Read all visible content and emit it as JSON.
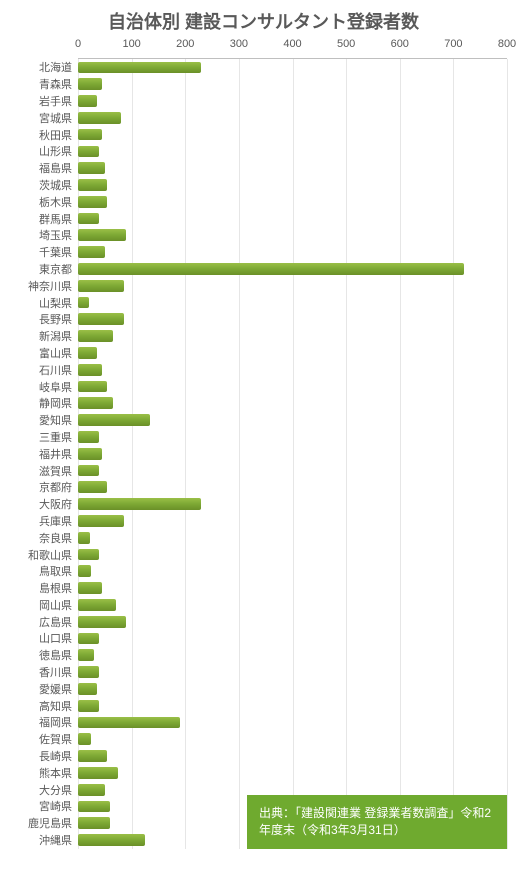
{
  "chart": {
    "type": "bar",
    "title": "自治体別  建設コンサルタント登録者数",
    "title_fontsize": 18,
    "title_color": "#595959",
    "x_axis": {
      "min": 0,
      "max": 800,
      "tick_step": 100,
      "ticks": [
        0,
        100,
        200,
        300,
        400,
        500,
        600,
        700,
        800
      ],
      "label_color": "#595959",
      "label_fontsize": 11
    },
    "grid_color": "#e6e6e6",
    "axis_line_color": "#bfbfbf",
    "bar_color": "#7da834",
    "bar_gradient_top": "#9abf47",
    "bar_gradient_bottom": "#6a9028",
    "background_color": "#ffffff",
    "categories": [
      "北海道",
      "青森県",
      "岩手県",
      "宮城県",
      "秋田県",
      "山形県",
      "福島県",
      "茨城県",
      "栃木県",
      "群馬県",
      "埼玉県",
      "千葉県",
      "東京都",
      "神奈川県",
      "山梨県",
      "長野県",
      "新潟県",
      "富山県",
      "石川県",
      "岐阜県",
      "静岡県",
      "愛知県",
      "三重県",
      "福井県",
      "滋賀県",
      "京都府",
      "大阪府",
      "兵庫県",
      "奈良県",
      "和歌山県",
      "鳥取県",
      "島根県",
      "岡山県",
      "広島県",
      "山口県",
      "徳島県",
      "香川県",
      "愛媛県",
      "高知県",
      "福岡県",
      "佐賀県",
      "長崎県",
      "熊本県",
      "大分県",
      "宮崎県",
      "鹿児島県",
      "沖縄県"
    ],
    "values": [
      230,
      45,
      35,
      80,
      45,
      40,
      50,
      55,
      55,
      40,
      90,
      50,
      720,
      85,
      20,
      85,
      65,
      35,
      45,
      55,
      65,
      135,
      40,
      45,
      40,
      55,
      230,
      85,
      22,
      40,
      25,
      45,
      70,
      90,
      40,
      30,
      40,
      35,
      40,
      190,
      25,
      55,
      75,
      50,
      60,
      60,
      125
    ]
  },
  "source_box": {
    "text": "出典：「建設関連業 登録業者数調査」令和2年度末（令和3年3月31日）",
    "background": "#6faa2f",
    "text_color": "#ffffff",
    "fontsize": 12
  }
}
